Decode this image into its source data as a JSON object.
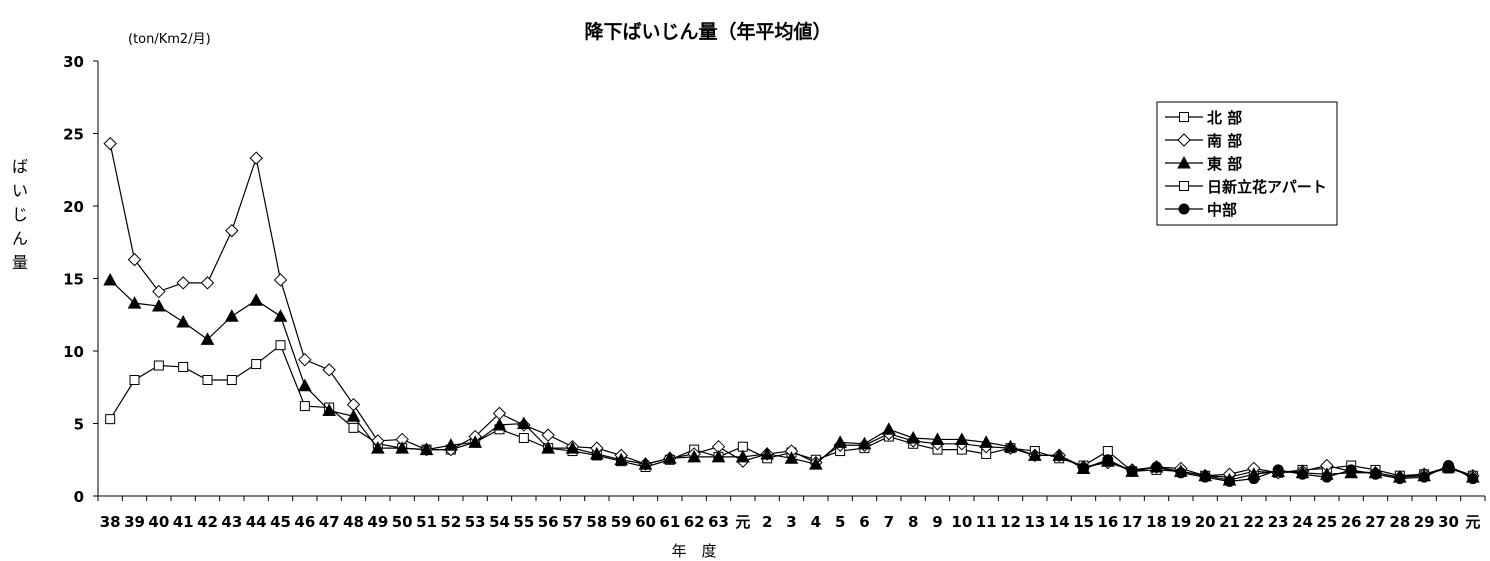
{
  "chart_data": {
    "type": "line",
    "title": "降下ばいじん量（年平均値）",
    "unit_label": "(ton/Km2/月)",
    "ylabel": "ばいじん量",
    "xlabel": "年　度",
    "ylim": [
      0,
      30
    ],
    "yticks": [
      "0",
      "5",
      "10",
      "15",
      "20",
      "25",
      "30"
    ],
    "grid": false,
    "legend_position": "right",
    "categories": [
      "38",
      "39",
      "40",
      "41",
      "42",
      "43",
      "44",
      "45",
      "46",
      "47",
      "48",
      "49",
      "50",
      "51",
      "52",
      "53",
      "54",
      "55",
      "56",
      "57",
      "58",
      "59",
      "60",
      "61",
      "62",
      "63",
      "元",
      "2",
      "3",
      "4",
      "5",
      "6",
      "7",
      "8",
      "9",
      "10",
      "11",
      "12",
      "13",
      "14",
      "15",
      "16",
      "17",
      "18",
      "19",
      "20",
      "21",
      "22",
      "23",
      "24",
      "25",
      "26",
      "27",
      "28",
      "29",
      "30",
      "元"
    ],
    "series": [
      {
        "name": "北 部",
        "marker": "square-open",
        "values": [
          5.3,
          8.0,
          9.0,
          8.9,
          8.0,
          8.0,
          9.1,
          10.4,
          6.2,
          6.1,
          4.7,
          3.6,
          3.3,
          3.2,
          3.2,
          3.7,
          4.6,
          4.0,
          3.3,
          3.1,
          2.8,
          2.4,
          2.0,
          2.5,
          3.2,
          2.7,
          3.4,
          2.6,
          3.0,
          2.5,
          3.1,
          3.3,
          4.1,
          3.6,
          3.2,
          3.2,
          2.9,
          3.3,
          3.1,
          2.6,
          2.1,
          3.1,
          1.7,
          1.8,
          1.7,
          1.4,
          1.3,
          1.7,
          1.6,
          1.8,
          1.9,
          2.1,
          1.8,
          1.4,
          1.5,
          1.9,
          1.4
        ]
      },
      {
        "name": "南 部",
        "marker": "diamond-open",
        "values": [
          24.3,
          16.3,
          14.1,
          14.7,
          14.7,
          18.3,
          23.3,
          14.9,
          9.4,
          8.7,
          6.3,
          3.8,
          3.9,
          3.2,
          3.2,
          4.1,
          5.7,
          4.9,
          4.2,
          3.4,
          3.3,
          2.8,
          2.2,
          2.6,
          2.9,
          3.4,
          2.4,
          2.9,
          3.1,
          2.3,
          3.5,
          3.5,
          4.3,
          3.8,
          3.6,
          3.6,
          3.4,
          3.3,
          2.8,
          2.8,
          2.0,
          2.3,
          1.8,
          2.0,
          1.9,
          1.4,
          1.5,
          1.9,
          1.6,
          1.7,
          2.1,
          1.7,
          1.6,
          1.3,
          1.5,
          2.0,
          1.4
        ]
      },
      {
        "name": "東 部",
        "marker": "triangle-filled",
        "values": [
          14.9,
          13.3,
          13.1,
          12.0,
          10.8,
          12.4,
          13.5,
          12.4,
          7.6,
          5.9,
          5.5,
          3.3,
          3.3,
          3.2,
          3.5,
          3.7,
          4.9,
          5.0,
          3.3,
          3.3,
          2.9,
          2.5,
          2.2,
          2.6,
          2.7,
          2.7,
          2.7,
          2.9,
          2.6,
          2.2,
          3.7,
          3.6,
          4.6,
          4.0,
          3.9,
          3.9,
          3.7,
          3.4,
          2.8,
          2.8,
          1.9,
          2.4,
          1.7,
          2.0,
          1.7,
          1.4,
          1.1,
          1.5,
          1.7,
          1.6,
          1.5,
          1.6,
          1.6,
          1.3,
          1.4,
          2.0,
          1.3
        ]
      },
      {
        "name": "日新立花アパート",
        "marker": "square-open",
        "values": [
          null,
          null,
          null,
          null,
          null,
          null,
          null,
          null,
          null,
          null,
          null,
          null,
          null,
          null,
          null,
          null,
          null,
          null,
          null,
          null,
          null,
          null,
          null,
          null,
          null,
          null,
          null,
          null,
          null,
          null,
          null,
          null,
          null,
          null,
          null,
          null,
          null,
          null,
          null,
          null,
          null,
          null,
          null,
          null,
          null,
          null,
          null,
          null,
          null,
          null,
          null,
          null,
          null,
          null,
          null,
          null,
          null
        ]
      },
      {
        "name": "中部",
        "marker": "circle-filled",
        "values": [
          null,
          null,
          null,
          null,
          null,
          null,
          null,
          null,
          null,
          null,
          null,
          null,
          null,
          null,
          null,
          null,
          null,
          null,
          null,
          null,
          null,
          null,
          null,
          null,
          null,
          null,
          null,
          null,
          null,
          null,
          null,
          null,
          null,
          null,
          null,
          null,
          null,
          null,
          null,
          null,
          1.9,
          2.5,
          1.7,
          2.0,
          1.6,
          1.3,
          1.0,
          1.2,
          1.8,
          1.5,
          1.3,
          1.8,
          1.5,
          1.2,
          1.3,
          2.1,
          1.2
        ]
      }
    ]
  }
}
